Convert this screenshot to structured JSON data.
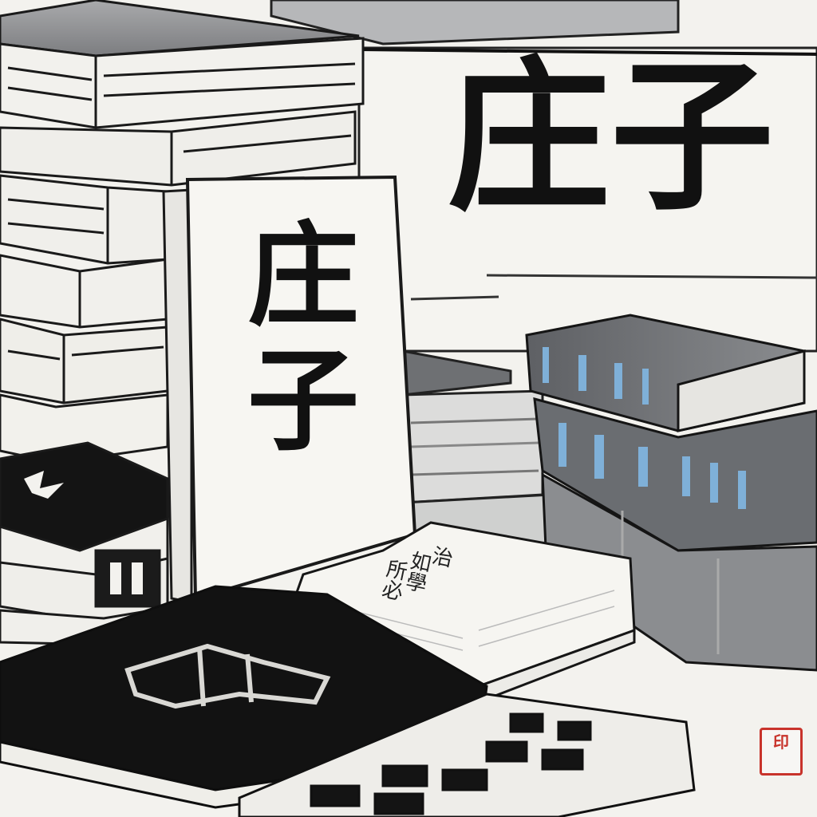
{
  "title_large": "庄子",
  "title_card": "庄子",
  "open_book_text": [
    "治",
    "如學",
    "所必"
  ],
  "seal_text": "印",
  "colors": {
    "paper": "#f3f2ee",
    "ink": "#111111",
    "grey_wash": "#8f9093",
    "blue_accent": "#7fb0d8",
    "seal_red": "#c8332b"
  }
}
